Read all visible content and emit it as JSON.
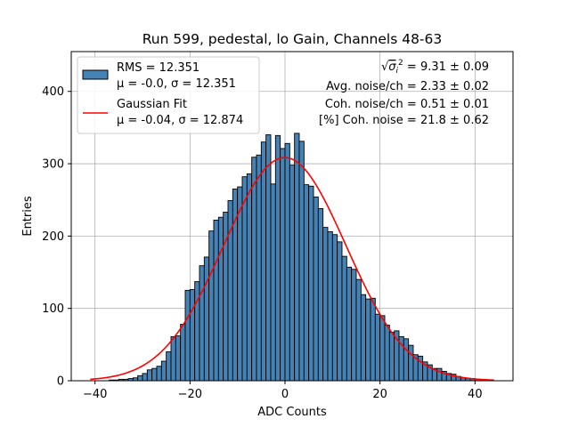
{
  "chart_data": {
    "type": "bar",
    "title": "Run 599, pedestal, lo Gain, Channels 48-63",
    "xlabel": "ADC Counts",
    "ylabel": "Entries",
    "xlim": [
      -45,
      48
    ],
    "ylim": [
      0,
      455
    ],
    "x_ticks": [
      -40,
      -20,
      0,
      20,
      40
    ],
    "x_tick_labels": [
      "−40",
      "−20",
      "0",
      "20",
      "40"
    ],
    "y_ticks": [
      0,
      100,
      200,
      300,
      400
    ],
    "y_tick_labels": [
      "0",
      "100",
      "200",
      "300",
      "400"
    ],
    "grid": true,
    "bar_color": "#4682b4",
    "bar_edge_color": "#000000",
    "fit_color": "#ff0000",
    "bin_width": 1,
    "histogram": {
      "bin_left": [
        -41,
        -40,
        -39,
        -38,
        -37,
        -36,
        -35,
        -34,
        -33,
        -32,
        -31,
        -30,
        -29,
        -28,
        -27,
        -26,
        -25,
        -24,
        -23,
        -22,
        -21,
        -20,
        -19,
        -18,
        -17,
        -16,
        -15,
        -14,
        -13,
        -12,
        -11,
        -10,
        -9,
        -8,
        -7,
        -6,
        -5,
        -4,
        -3,
        -2,
        -1,
        0,
        1,
        2,
        3,
        4,
        5,
        6,
        7,
        8,
        9,
        10,
        11,
        12,
        13,
        14,
        15,
        16,
        17,
        18,
        19,
        20,
        21,
        22,
        23,
        24,
        25,
        26,
        27,
        28,
        29,
        30,
        31,
        32,
        33,
        34,
        35,
        36,
        37,
        38,
        39,
        40,
        41,
        42,
        43
      ],
      "counts": [
        0,
        0,
        0,
        0,
        1,
        1,
        2,
        2,
        3,
        4,
        7,
        10,
        15,
        17,
        20,
        27,
        40,
        61,
        62,
        78,
        125,
        126,
        137,
        159,
        171,
        207,
        222,
        226,
        233,
        249,
        265,
        268,
        282,
        286,
        309,
        312,
        330,
        340,
        272,
        339,
        321,
        328,
        298,
        342,
        331,
        271,
        269,
        254,
        238,
        212,
        206,
        202,
        192,
        172,
        157,
        154,
        140,
        119,
        113,
        114,
        92,
        90,
        77,
        67,
        69,
        61,
        58,
        49,
        36,
        34,
        26,
        22,
        17,
        17,
        13,
        10,
        9,
        6,
        4,
        3,
        3,
        2,
        1,
        1,
        0
      ]
    },
    "series": [
      {
        "name": "RMS = 12.351",
        "name_line2": "μ = -0.0, σ = 12.351",
        "kind": "histogram"
      },
      {
        "name": "Gaussian Fit",
        "name_line2": "μ = -0.04, σ = 12.874",
        "kind": "line",
        "mu": -0.04,
        "sigma": 12.874,
        "amplitude": 308.5,
        "x_range": [
          -41,
          44
        ]
      }
    ],
    "legend_position": "upper-left",
    "annotations": [
      {
        "prefix": "√",
        "radicand": "σ",
        "sub": "i",
        "sup": "2",
        "text": " = 9.31 ± 0.09"
      },
      {
        "text": "Avg. noise/ch = 2.33 ± 0.02"
      },
      {
        "text": "Coh. noise/ch = 0.51 ± 0.01"
      },
      {
        "text": "[%] Coh. noise = 21.8 ± 0.62"
      }
    ]
  }
}
